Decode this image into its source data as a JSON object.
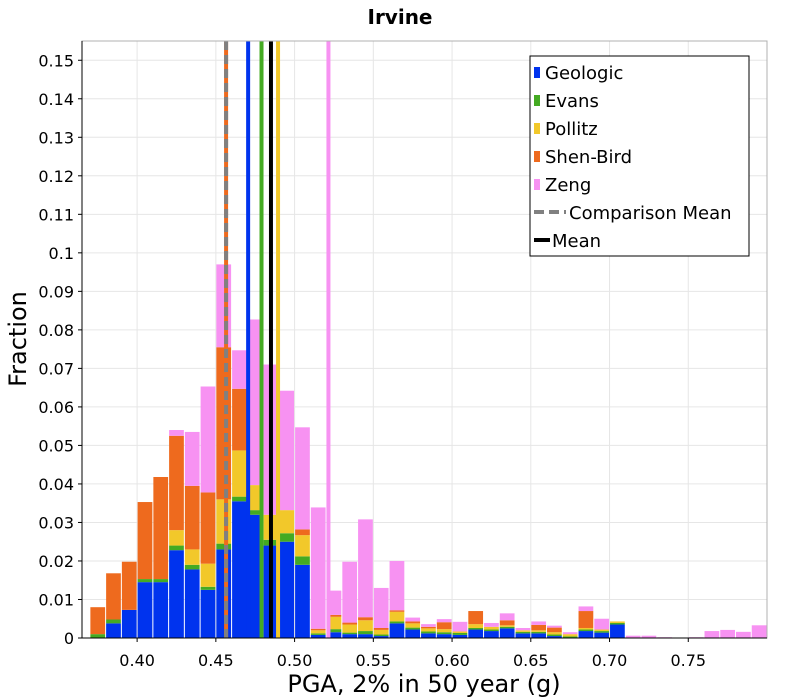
{
  "chart_data": {
    "type": "bar",
    "stacked": true,
    "title": "Irvine",
    "xlabel": "PGA, 2% in 50 year (g)",
    "ylabel": "Fraction",
    "xlim": [
      0.365,
      0.8
    ],
    "ylim": [
      0,
      0.155
    ],
    "bin_width": 0.01,
    "grid": true,
    "legend_position": "top-right",
    "x_ticks": [
      "0.40",
      "0.45",
      "0.50",
      "0.55",
      "0.60",
      "0.65",
      "0.70",
      "0.75"
    ],
    "x_tick_values": [
      0.4,
      0.45,
      0.5,
      0.55,
      0.6,
      0.65,
      0.7,
      0.75
    ],
    "y_ticks": [
      "0",
      "0.01",
      "0.02",
      "0.03",
      "0.04",
      "0.05",
      "0.06",
      "0.07",
      "0.08",
      "0.09",
      "0.1",
      "0.11",
      "0.12",
      "0.13",
      "0.14",
      "0.15"
    ],
    "y_tick_values": [
      0,
      0.01,
      0.02,
      0.03,
      0.04,
      0.05,
      0.06,
      0.07,
      0.08,
      0.09,
      0.1,
      0.11,
      0.12,
      0.13,
      0.14,
      0.15
    ],
    "bins": [
      0.36,
      0.37,
      0.38,
      0.39,
      0.4,
      0.41,
      0.42,
      0.43,
      0.44,
      0.45,
      0.46,
      0.47,
      0.48,
      0.49,
      0.5,
      0.51,
      0.52,
      0.53,
      0.54,
      0.55,
      0.56,
      0.57,
      0.58,
      0.59,
      0.6,
      0.61,
      0.62,
      0.63,
      0.64,
      0.65,
      0.66,
      0.67,
      0.68,
      0.69,
      0.7,
      0.71,
      0.72,
      0.73,
      0.74,
      0.75,
      0.76,
      0.77,
      0.78,
      0.79
    ],
    "series": [
      {
        "name": "Geologic",
        "color": "#0033ee",
        "values": [
          0,
          0,
          0.0038,
          0.0073,
          0.0145,
          0.0145,
          0.0228,
          0.0178,
          0.0125,
          0.023,
          0.0355,
          0.032,
          0.024,
          0.025,
          0.019,
          0.0008,
          0.0015,
          0.001,
          0.001,
          0.0005,
          0.0038,
          0.0022,
          0.0012,
          0.001,
          0.0008,
          0.0022,
          0.0018,
          0.0025,
          0.0012,
          0.0012,
          0.0005,
          0.0,
          0.0018,
          0.0014,
          0.0035,
          0.0,
          0,
          0,
          0,
          0,
          0,
          0,
          0,
          0
        ]
      },
      {
        "name": "Evans",
        "color": "#44aa22",
        "values": [
          0,
          0.001,
          0.001,
          0,
          0.0008,
          0.0008,
          0.0012,
          0.0012,
          0.0008,
          0.0015,
          0.0012,
          0.0012,
          0.0015,
          0.0022,
          0.0022,
          0.0004,
          0.0008,
          0.0004,
          0.0008,
          0.0004,
          0.0005,
          0.0005,
          0.0005,
          0.0005,
          0.0005,
          0.0004,
          0.0004,
          0.0004,
          0.0004,
          0.0004,
          0.0004,
          0.0004,
          0.0004,
          0.0004,
          0.0004,
          0,
          0,
          0,
          0,
          0,
          0,
          0,
          0,
          0
        ]
      },
      {
        "name": "Pollitz",
        "color": "#f2c82a",
        "values": [
          0,
          0,
          0,
          0,
          0,
          0,
          0.004,
          0.004,
          0.006,
          0.0115,
          0.012,
          0.0065,
          0.0065,
          0.006,
          0.0055,
          0.0008,
          0.0032,
          0.0021,
          0.0028,
          0.0012,
          0.0025,
          0.0011,
          0.0008,
          0.0008,
          0.0004,
          0.001,
          0.0007,
          0.0004,
          0.0004,
          0.0004,
          0.0006,
          0.0006,
          0.0004,
          0.0004,
          0.0004,
          0,
          0,
          0,
          0,
          0,
          0,
          0,
          0,
          0
        ]
      },
      {
        "name": "Shen-Bird",
        "color": "#ee6a1e",
        "values": [
          0,
          0.007,
          0.012,
          0.0125,
          0.02,
          0.0265,
          0.0245,
          0.0165,
          0.0185,
          0.0395,
          0.016,
          0.0,
          0.0,
          0.0,
          0.0015,
          0.0004,
          0.0005,
          0.0005,
          0.0008,
          0.0005,
          0.0004,
          0.0005,
          0.0004,
          0.0018,
          0.0,
          0.0034,
          0.0,
          0.0013,
          0.0,
          0.0014,
          0.0012,
          0.0,
          0.0044,
          0.0,
          0.0,
          0,
          0,
          0,
          0,
          0,
          0,
          0,
          0,
          0
        ]
      },
      {
        "name": "Zeng",
        "color": "#f792f2",
        "values": [
          0,
          0,
          0,
          0,
          0,
          0,
          0.0015,
          0.014,
          0.0275,
          0.0215,
          0.01,
          0.043,
          0.039,
          0.031,
          0.0265,
          0.0315,
          0.0063,
          0.0158,
          0.0254,
          0.0104,
          0.0128,
          0.001,
          0.0007,
          0.0008,
          0.0025,
          0.0,
          0.001,
          0.0018,
          0.0006,
          0.0009,
          0.0005,
          0.0005,
          0.0012,
          0.0028,
          0.0,
          0.0006,
          0.0006,
          0.0002,
          0.0,
          0.0002,
          0.0018,
          0.0021,
          0.0016,
          0.0033
        ]
      }
    ],
    "vertical_lines": [
      {
        "name": "Geologic mean",
        "x": 0.4705,
        "color": "#0033ee",
        "style": "solid"
      },
      {
        "name": "Evans mean",
        "x": 0.479,
        "color": "#44aa22",
        "style": "solid"
      },
      {
        "name": "Pollitz mean",
        "x": 0.4895,
        "color": "#f2c82a",
        "style": "solid"
      },
      {
        "name": "Shen-Bird mean",
        "x": 0.4565,
        "color": "#ee6a1e",
        "style": "solid"
      },
      {
        "name": "Zeng mean",
        "x": 0.5215,
        "color": "#f792f2",
        "style": "solid"
      },
      {
        "name": "Comparison Mean",
        "x": 0.4565,
        "color": "#808080",
        "style": "dashed"
      },
      {
        "name": "Mean",
        "x": 0.485,
        "color": "#000000",
        "style": "solid"
      }
    ],
    "legend": [
      {
        "label": "Geologic",
        "color": "#0033ee",
        "kind": "box"
      },
      {
        "label": "Evans",
        "color": "#44aa22",
        "kind": "box"
      },
      {
        "label": "Pollitz",
        "color": "#f2c82a",
        "kind": "box"
      },
      {
        "label": "Shen-Bird",
        "color": "#ee6a1e",
        "kind": "box"
      },
      {
        "label": "Zeng",
        "color": "#f792f2",
        "kind": "box"
      },
      {
        "label": "Comparison Mean",
        "color": "#808080",
        "kind": "dashed-line"
      },
      {
        "label": "Mean",
        "color": "#000000",
        "kind": "line"
      }
    ]
  }
}
